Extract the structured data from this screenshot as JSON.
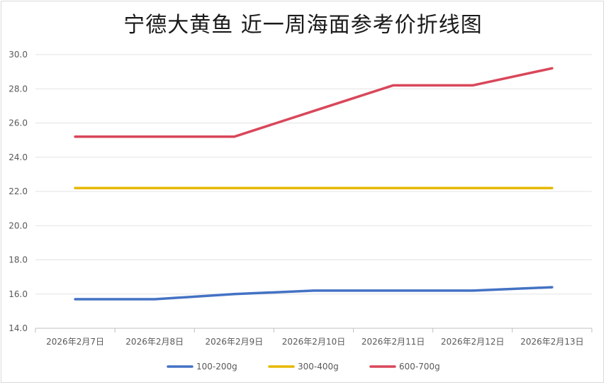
{
  "chart_data": {
    "type": "line",
    "title": "宁德大黄鱼 近一周海面参考价折线图",
    "categories": [
      "2026年2月7日",
      "2026年2月8日",
      "2026年2月9日",
      "2026年2月10日",
      "2026年2月11日",
      "2026年2月12日",
      "2026年2月13日"
    ],
    "ylim": [
      14.0,
      30.0
    ],
    "yticks": [
      "14.0",
      "16.0",
      "18.0",
      "20.0",
      "22.0",
      "24.0",
      "26.0",
      "28.0",
      "30.0"
    ],
    "grid": true,
    "legend_position": "bottom",
    "series": [
      {
        "name": "100-200g",
        "color": "#4472c4",
        "values": [
          15.7,
          15.7,
          16.0,
          16.2,
          16.2,
          16.2,
          16.4
        ]
      },
      {
        "name": "300-400g",
        "color": "#e6b800",
        "values": [
          22.2,
          22.2,
          22.2,
          22.2,
          22.2,
          22.2,
          22.2
        ]
      },
      {
        "name": "600-700g",
        "color": "#d9475a",
        "values": [
          25.2,
          25.2,
          25.2,
          26.7,
          28.2,
          28.2,
          29.2
        ]
      }
    ]
  }
}
